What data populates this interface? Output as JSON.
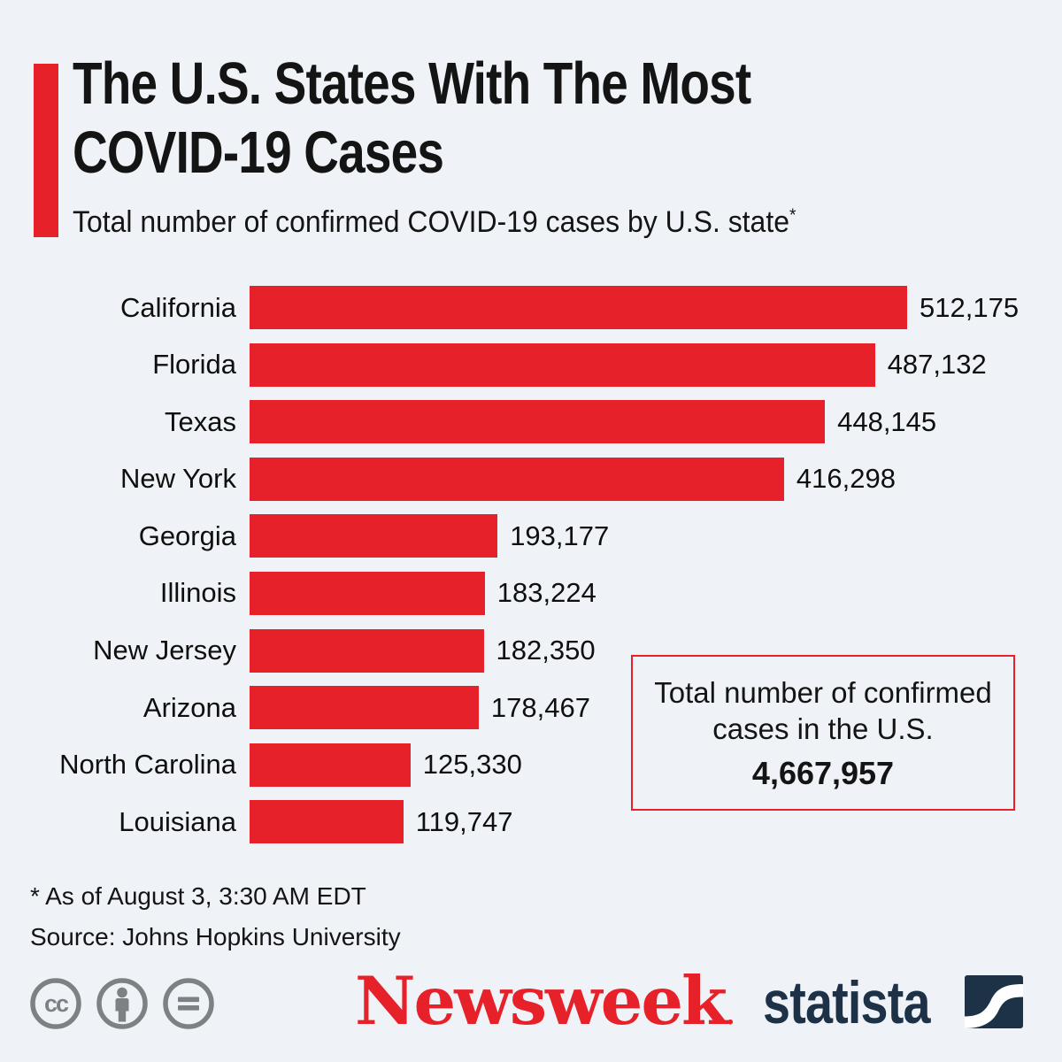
{
  "page": {
    "background_color": "#eff3f7"
  },
  "header": {
    "title_line1": "The U.S. States With The Most",
    "title_line2": "COVID-19 Cases",
    "subtitle": "Total number of confirmed COVID-19 cases by U.S. state",
    "footnote_marker": "*",
    "accent_color": "#e6212a"
  },
  "chart_data": {
    "type": "bar",
    "orientation": "horizontal",
    "title": "The U.S. States With The Most COVID-19 Cases",
    "subtitle": "Total number of confirmed COVID-19 cases by U.S. state*",
    "x_max": 512175,
    "bar_color": "#e6212a",
    "grid": false,
    "legend": false,
    "categories": [
      "California",
      "Florida",
      "Texas",
      "New York",
      "Georgia",
      "Illinois",
      "New Jersey",
      "Arizona",
      "North Carolina",
      "Louisiana"
    ],
    "values": [
      512175,
      487132,
      448145,
      416298,
      193177,
      183224,
      182350,
      178467,
      125330,
      119747
    ],
    "value_labels": [
      "512,175",
      "487,132",
      "448,145",
      "416,298",
      "193,177",
      "183,224",
      "182,350",
      "178,467",
      "125,330",
      "119,747"
    ]
  },
  "total_box": {
    "line1": "Total number of confirmed",
    "line2": "cases in the U.S.",
    "value": "4,667,957",
    "border_color": "#e6212a"
  },
  "footer": {
    "note": "* As of August 3, 3:30 AM EDT",
    "source": "Source: Johns Hopkins University"
  },
  "branding": {
    "newsweek_wordmark": "Newsweek",
    "newsweek_suffix": ".",
    "newsweek_color": "#e6212a",
    "statista_wordmark": "statista",
    "statista_color": "#1d3247",
    "cc_icon_names": [
      "cc-icon",
      "cc-by-person-icon",
      "cc-nd-equals-icon"
    ],
    "cc_icon_color": "#7d8184",
    "cc_icon_text": "cc"
  }
}
